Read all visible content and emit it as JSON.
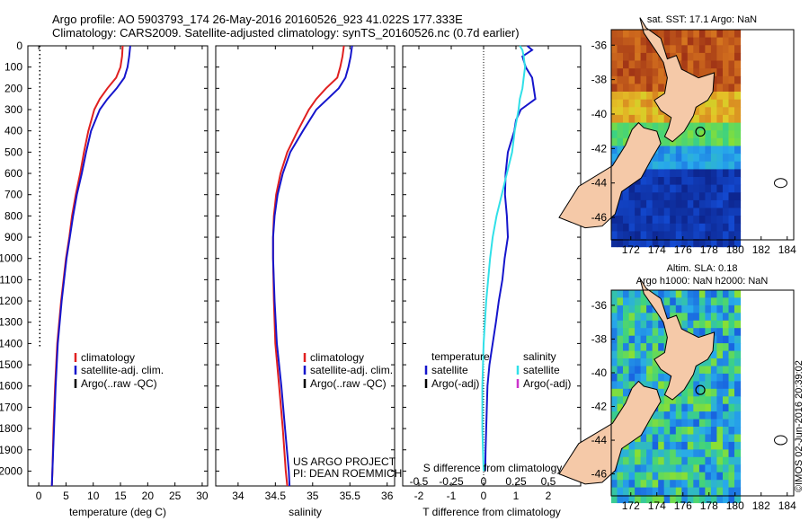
{
  "header": {
    "title_line1": "Argo profile: AO 5903793_174 26-May-2016 20160526_923 41.022S 177.333E",
    "title_line2": "Climatology: CARS2009. Satellite-adjusted climatology: synTS_20160526.nc (0.7d earlier)"
  },
  "side_stamp": "©IMOS 02-Jun-2016 20:39:02",
  "colors": {
    "climatology": "#e02020",
    "satellite": "#1515cc",
    "argo": "#000000",
    "sat_salinity": "#30e0e8",
    "argo_salinity": "#cc33cc",
    "land": "#f5c9a8"
  },
  "chart_data": [
    {
      "id": "temperature",
      "type": "line",
      "xlabel": "temperature (deg C)",
      "ylabel": "",
      "xlim": [
        -2,
        31
      ],
      "ylim": [
        2070,
        0
      ],
      "xticks": [
        "0",
        "5",
        "10",
        "15",
        "20",
        "25",
        "30"
      ],
      "xtick_values": [
        0,
        5,
        10,
        15,
        20,
        25,
        30
      ],
      "yticks": [
        "0",
        "100",
        "200",
        "300",
        "400",
        "500",
        "600",
        "700",
        "800",
        "900",
        "1000",
        "1100",
        "1200",
        "1300",
        "1400",
        "1500",
        "1600",
        "1700",
        "1800",
        "1900",
        "2000"
      ],
      "ytick_values": [
        0,
        100,
        200,
        300,
        400,
        500,
        600,
        700,
        800,
        900,
        1000,
        1100,
        1200,
        1300,
        1400,
        1500,
        1600,
        1700,
        1800,
        1900,
        2000
      ],
      "legend": [
        "climatology",
        "satellite-adj. clim.",
        "Argo(..raw -QC)"
      ],
      "series": [
        {
          "name": "climatology",
          "depth": [
            0,
            50,
            100,
            150,
            200,
            250,
            300,
            400,
            500,
            600,
            700,
            800,
            900,
            1000,
            1200,
            1400,
            1600,
            1800,
            2000,
            2070
          ],
          "values": [
            15.4,
            15.3,
            15.0,
            14.2,
            12.6,
            11.2,
            10.2,
            9.1,
            8.3,
            7.6,
            6.8,
            6.1,
            5.6,
            5.0,
            4.1,
            3.4,
            3.0,
            2.7,
            2.5,
            2.4
          ]
        },
        {
          "name": "satellite-adj. clim.",
          "depth": [
            0,
            50,
            100,
            150,
            200,
            250,
            300,
            400,
            500,
            600,
            700,
            800,
            900,
            1000,
            1200,
            1400,
            1600,
            1800,
            2000,
            2070
          ],
          "values": [
            16.8,
            16.6,
            16.3,
            15.7,
            14.3,
            12.6,
            11.2,
            9.6,
            8.7,
            7.9,
            7.0,
            6.3,
            5.7,
            5.1,
            4.2,
            3.5,
            3.1,
            2.8,
            2.5,
            2.4
          ]
        },
        {
          "name": "Argo(..raw -QC)",
          "style": "dotted",
          "depth": [
            0,
            1420
          ],
          "values": [
            0.2,
            0.2
          ]
        }
      ]
    },
    {
      "id": "salinity",
      "type": "line",
      "xlabel": "salinity",
      "xlim": [
        33.7,
        36.1
      ],
      "ylim": [
        2070,
        0
      ],
      "xticks": [
        "34",
        "34.5",
        "35",
        "35.5",
        "36"
      ],
      "xtick_values": [
        34,
        34.5,
        35,
        35.5,
        36
      ],
      "legend": [
        "climatology",
        "satellite-adj. clim.",
        "Argo(..raw -QC)"
      ],
      "series": [
        {
          "name": "climatology",
          "depth": [
            0,
            50,
            100,
            150,
            200,
            250,
            300,
            400,
            500,
            600,
            700,
            800,
            900,
            1000,
            1200,
            1400,
            1600,
            1800,
            2000,
            2070
          ],
          "values": [
            35.42,
            35.4,
            35.37,
            35.33,
            35.18,
            35.05,
            34.95,
            34.8,
            34.66,
            34.57,
            34.51,
            34.48,
            34.47,
            34.47,
            34.48,
            34.5,
            34.55,
            34.6,
            34.64,
            34.66
          ]
        },
        {
          "name": "satellite-adj. clim.",
          "depth": [
            0,
            50,
            100,
            150,
            200,
            250,
            300,
            400,
            500,
            600,
            700,
            800,
            900,
            1000,
            1200,
            1400,
            1600,
            1800,
            2000,
            2070
          ],
          "values": [
            35.53,
            35.51,
            35.48,
            35.44,
            35.35,
            35.2,
            35.05,
            34.87,
            34.7,
            34.6,
            34.53,
            34.49,
            34.47,
            34.47,
            34.49,
            34.52,
            34.58,
            34.63,
            34.68,
            34.69
          ]
        }
      ],
      "annotations": [
        "US ARGO PROJECT",
        "PI: DEAN ROEMMICH"
      ]
    },
    {
      "id": "difference",
      "type": "line",
      "xlabel": "T difference from climatology",
      "top_label": "S difference from climatology",
      "xlim": [
        -2.5,
        3.0
      ],
      "ylim": [
        2070,
        0
      ],
      "xticks": [
        "-2",
        "-1",
        "0",
        "1",
        "2"
      ],
      "xtick_values": [
        -2,
        -1,
        0,
        1,
        2
      ],
      "top_xticks": [
        "-0.5",
        "-0.25",
        "0",
        "0.25",
        "0.5"
      ],
      "legend_left_title": "temperature",
      "legend_right_title": "salinity",
      "legend": [
        "satellite",
        "Argo(-adj)",
        "satellite",
        "Argo(-adj)"
      ],
      "series": [
        {
          "name": "temperature satellite",
          "depth": [
            0,
            20,
            50,
            100,
            150,
            200,
            250,
            300,
            350,
            400,
            500,
            600,
            700,
            800,
            900,
            1000,
            1100,
            1200,
            1300,
            1400,
            1500,
            1600,
            1700,
            1800,
            1900,
            2000
          ],
          "values": [
            1.35,
            1.5,
            1.2,
            1.3,
            1.5,
            1.55,
            1.6,
            1.15,
            1.0,
            0.95,
            0.75,
            0.68,
            0.66,
            0.72,
            0.75,
            0.65,
            0.58,
            0.47,
            0.38,
            0.28,
            0.18,
            0.12,
            0.1,
            0.08,
            0.06,
            0.05
          ]
        },
        {
          "name": "salinity satellite",
          "depth": [
            0,
            20,
            50,
            100,
            150,
            200,
            250,
            300,
            400,
            500,
            600,
            700,
            800,
            900,
            1000,
            1200,
            1400,
            1600,
            1800,
            2000
          ],
          "values": [
            0.28,
            0.3,
            0.31,
            0.32,
            0.31,
            0.3,
            0.28,
            0.27,
            0.24,
            0.22,
            0.18,
            0.14,
            0.1,
            0.07,
            0.05,
            0.02,
            0.0,
            -0.01,
            -0.01,
            0.0
          ]
        }
      ]
    }
  ],
  "maps": [
    {
      "id": "sst-map",
      "title": "sat. SST: 17.1  Argo: NaN",
      "subtitle_line1": "",
      "subtitle_line2": "",
      "xticks": [
        "172",
        "174",
        "176",
        "178",
        "180",
        "182",
        "184"
      ],
      "xtick_values": [
        172,
        174,
        176,
        178,
        180,
        182,
        184
      ],
      "yticks": [
        "-36",
        "-38",
        "-40",
        "-42",
        "-44",
        "-46"
      ],
      "ytick_values": [
        -36,
        -38,
        -40,
        -42,
        -44,
        -46
      ],
      "lon_range": [
        170.5,
        184.5
      ],
      "lat_range": [
        -47.3,
        -35.1
      ],
      "data_lon_max": 180,
      "argo_position": {
        "lon": 177.333,
        "lat": -41.022
      }
    },
    {
      "id": "sla-map",
      "title": "",
      "subtitle_line1": "Altim. SLA: 0.18",
      "subtitle_line2": "Argo h1000: NaN h2000: NaN",
      "xticks": [
        "172",
        "174",
        "176",
        "178",
        "180",
        "182",
        "184"
      ],
      "xtick_values": [
        172,
        174,
        176,
        178,
        180,
        182,
        184
      ],
      "yticks": [
        "-36",
        "-38",
        "-40",
        "-42",
        "-44",
        "-46"
      ],
      "ytick_values": [
        -36,
        -38,
        -40,
        -42,
        -44,
        -46
      ],
      "lon_range": [
        170.5,
        184.5
      ],
      "lat_range": [
        -47.3,
        -35.1
      ],
      "data_lon_max": 180,
      "argo_position": {
        "lon": 177.333,
        "lat": -41.022
      }
    }
  ]
}
